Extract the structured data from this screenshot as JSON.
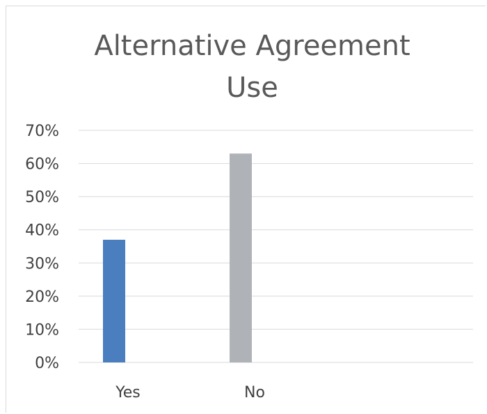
{
  "chart_data": {
    "type": "bar",
    "title_lines": [
      "Alternative Agreement",
      "Use"
    ],
    "categories": [
      "Yes",
      "No"
    ],
    "values": [
      0.37,
      0.63
    ],
    "colors": [
      "#4a7ebf",
      "#afb3b7"
    ],
    "ylim": [
      0,
      0.7
    ],
    "yticks": [
      0,
      0.1,
      0.2,
      0.3,
      0.4,
      0.5,
      0.6,
      0.7
    ],
    "ytick_labels": [
      "0%",
      "10%",
      "20%",
      "30%",
      "40%",
      "50%",
      "60%",
      "70%"
    ],
    "grid": true,
    "gridline_color": "#d9d9d9",
    "legend": "none"
  }
}
